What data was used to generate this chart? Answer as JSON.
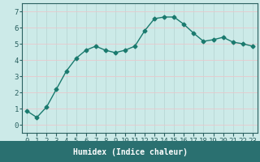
{
  "x": [
    0,
    1,
    2,
    3,
    4,
    5,
    6,
    7,
    8,
    9,
    10,
    11,
    12,
    13,
    14,
    15,
    16,
    17,
    18,
    19,
    20,
    21,
    22,
    23
  ],
  "y": [
    0.85,
    0.45,
    1.1,
    2.2,
    3.3,
    4.1,
    4.6,
    4.85,
    4.6,
    4.45,
    4.6,
    4.85,
    5.8,
    6.55,
    6.65,
    6.65,
    6.2,
    5.65,
    5.15,
    5.25,
    5.4,
    5.1,
    5.0,
    4.85
  ],
  "xlabel": "Humidex (Indice chaleur)",
  "ylim": [
    -0.5,
    7.5
  ],
  "xlim": [
    -0.5,
    23.5
  ],
  "bg_color": "#cceae8",
  "plot_bg_color": "#cceae8",
  "line_color": "#1a7a6e",
  "grid_color": "#b8d8d6",
  "pink_grid_color": "#e8c8cc",
  "marker": "D",
  "marker_size": 2.5,
  "line_width": 1.0,
  "yticks": [
    0,
    1,
    2,
    3,
    4,
    5,
    6,
    7
  ],
  "xticks": [
    0,
    1,
    2,
    3,
    4,
    5,
    6,
    7,
    8,
    9,
    10,
    11,
    12,
    13,
    14,
    15,
    16,
    17,
    18,
    19,
    20,
    21,
    22,
    23
  ],
  "xtick_labels": [
    "0",
    "1",
    "2",
    "3",
    "4",
    "5",
    "6",
    "7",
    "8",
    "9",
    "10",
    "11",
    "12",
    "13",
    "14",
    "15",
    "16",
    "17",
    "18",
    "19",
    "20",
    "21",
    "22",
    "23"
  ],
  "xlabel_fontsize": 7,
  "tick_fontsize": 6.5,
  "axis_color": "#2a6060",
  "bottom_bar_color": "#2a7070",
  "bottom_bar_height": 0.13
}
